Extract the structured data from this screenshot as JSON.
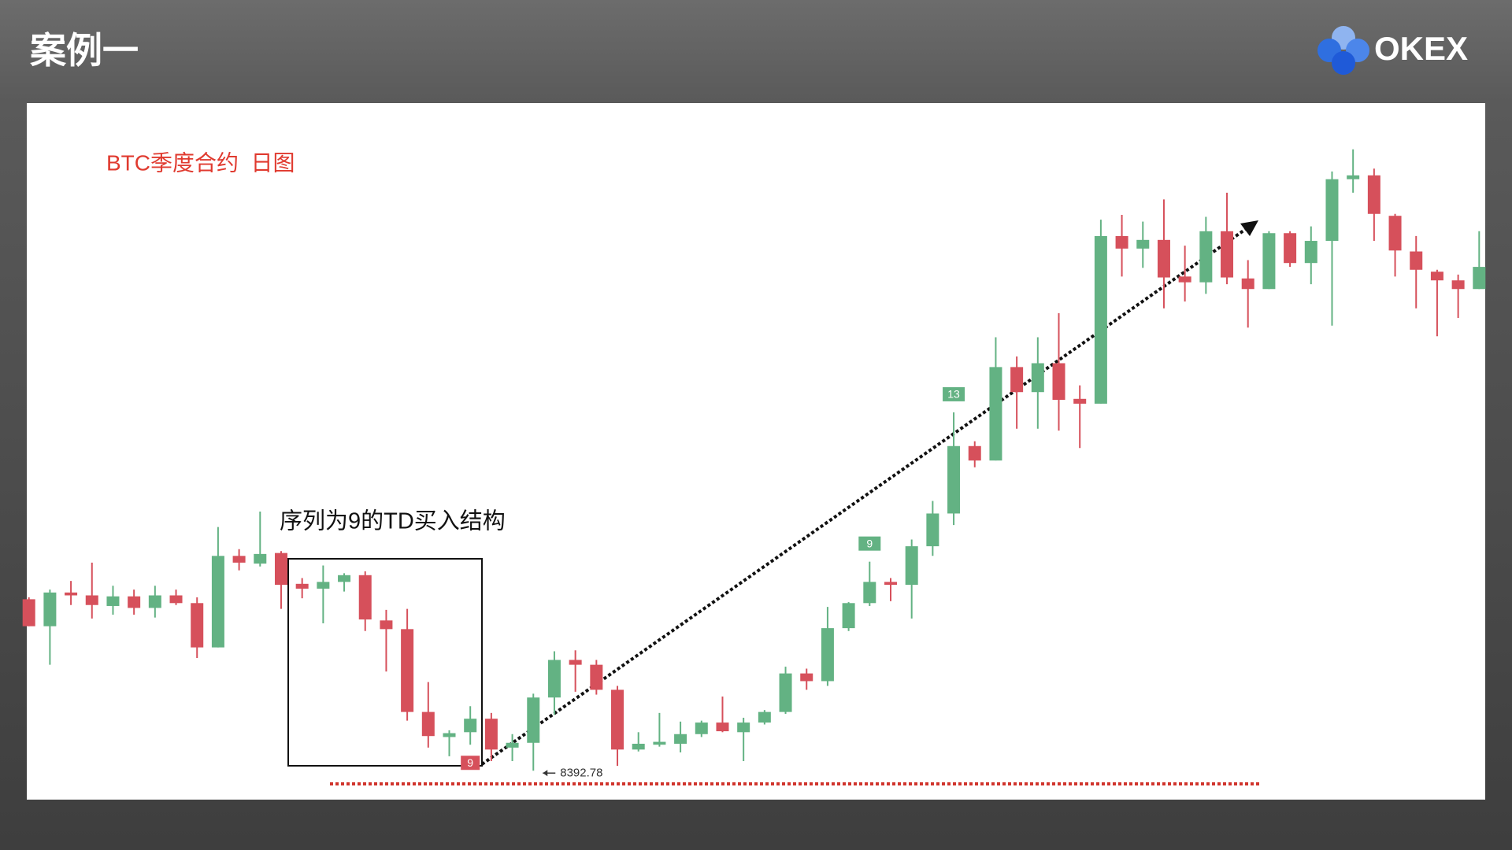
{
  "header": {
    "title": "案例一",
    "brand": "OKEX"
  },
  "chart_data": {
    "type": "candlestick",
    "title": "BTC季度合约  日图",
    "annotation": "序列为9的TD买入结构",
    "up_color": "#63b283",
    "down_color": "#d6505b",
    "ylim": [
      8093,
      15323
    ],
    "categories": [
      null,
      null,
      null,
      null,
      null,
      null,
      null,
      null,
      null,
      null,
      null,
      null,
      null,
      null,
      null,
      null,
      null,
      null,
      null,
      null,
      null,
      null,
      null,
      null,
      null,
      null,
      null,
      null,
      null,
      null,
      null,
      null,
      null,
      null,
      null,
      null,
      null,
      null,
      null,
      null,
      null,
      null,
      null,
      null,
      null,
      null,
      null,
      null,
      null,
      null,
      null,
      null,
      null,
      null,
      null,
      null,
      null,
      null,
      null,
      null,
      null,
      null,
      null,
      null,
      null,
      null,
      null,
      null,
      null,
      null
    ],
    "open": [
      10173,
      9893,
      10243,
      10213,
      10103,
      10203,
      10083,
      10213,
      10133,
      9673,
      10623,
      10543,
      10653,
      10333,
      10283,
      10353,
      10423,
      9953,
      9863,
      9003,
      8743,
      8793,
      8933,
      8633,
      8683,
      9153,
      9543,
      9493,
      9233,
      8613,
      8663,
      8673,
      8773,
      8893,
      8793,
      8893,
      9003,
      9403,
      9323,
      9873,
      10133,
      10353,
      10323,
      10723,
      11063,
      11763,
      11613,
      12583,
      12323,
      12623,
      12253,
      12203,
      13943,
      13813,
      13903,
      13523,
      13463,
      13993,
      13503,
      13393,
      13973,
      13663,
      13893,
      14533,
      14573,
      14153,
      13783,
      13573,
      13483,
      13393
    ],
    "high": [
      10193,
      10273,
      10363,
      10553,
      10313,
      10273,
      10313,
      10273,
      10193,
      10923,
      10693,
      11083,
      10673,
      10393,
      10523,
      10443,
      10463,
      10063,
      10073,
      9313,
      8813,
      9063,
      8993,
      8773,
      9193,
      9633,
      9643,
      9543,
      9273,
      8793,
      8993,
      8903,
      8913,
      9163,
      8943,
      9023,
      9473,
      9453,
      10093,
      10143,
      10563,
      10393,
      10793,
      11193,
      12113,
      11813,
      12893,
      12693,
      12893,
      13143,
      12393,
      14113,
      14163,
      14093,
      14323,
      13843,
      14143,
      14393,
      13693,
      13993,
      13993,
      14043,
      14613,
      14843,
      14643,
      14173,
      13943,
      13593,
      13543,
      13993
    ],
    "low": [
      9893,
      9493,
      10113,
      9973,
      10013,
      10013,
      9983,
      10113,
      9563,
      9673,
      10473,
      10513,
      10073,
      10183,
      9923,
      10253,
      9843,
      9423,
      8913,
      8633,
      8543,
      8663,
      8493,
      8493,
      8392.78,
      8973,
      9213,
      9183,
      8443,
      8593,
      8643,
      8583,
      8743,
      8793,
      8493,
      8873,
      8983,
      9233,
      9273,
      9843,
      10103,
      10153,
      9973,
      10623,
      10943,
      11543,
      11613,
      11943,
      11943,
      11923,
      11743,
      12203,
      13523,
      13613,
      13193,
      13263,
      13343,
      13443,
      12993,
      13393,
      13623,
      13443,
      13013,
      14393,
      13893,
      13523,
      13193,
      12903,
      13093,
      13393
    ],
    "close": [
      9893,
      10243,
      10213,
      10113,
      10203,
      10083,
      10213,
      10133,
      9673,
      10623,
      10553,
      10643,
      10323,
      10283,
      10353,
      10423,
      9963,
      9863,
      9003,
      8753,
      8783,
      8933,
      8613,
      8683,
      9153,
      9543,
      9493,
      9233,
      8613,
      8673,
      8693,
      8773,
      8893,
      8803,
      8893,
      9003,
      9403,
      9323,
      9873,
      10133,
      10353,
      10323,
      10723,
      11063,
      11763,
      11613,
      12583,
      12323,
      12623,
      12243,
      12203,
      13943,
      13813,
      13903,
      13513,
      13463,
      13993,
      13513,
      13393,
      13973,
      13663,
      13893,
      14533,
      14573,
      14173,
      13793,
      13593,
      13483,
      13393,
      13623
    ],
    "td_buy_color": "#d6505b",
    "td_sell_color": "#63b283",
    "td_buy": [
      null,
      null,
      null,
      null,
      null,
      null,
      null,
      null,
      null,
      null,
      null,
      null,
      null,
      null,
      null,
      null,
      null,
      null,
      null,
      null,
      null,
      9,
      null,
      null,
      null,
      null,
      null,
      null,
      null,
      null,
      null,
      null,
      null,
      null,
      null,
      null,
      null,
      null,
      null,
      null,
      null,
      null,
      null,
      null,
      null,
      null,
      null,
      null,
      null,
      null,
      null,
      null,
      null,
      null,
      null,
      null,
      null,
      null,
      null,
      null,
      null,
      null,
      null,
      null,
      null,
      null,
      null,
      null,
      null,
      null
    ],
    "td_sell": [
      null,
      null,
      null,
      null,
      null,
      null,
      null,
      null,
      null,
      null,
      null,
      null,
      null,
      null,
      null,
      null,
      null,
      null,
      null,
      null,
      null,
      null,
      null,
      null,
      null,
      null,
      null,
      null,
      null,
      null,
      null,
      null,
      null,
      null,
      null,
      null,
      null,
      null,
      null,
      null,
      9,
      null,
      null,
      null,
      13,
      null,
      null,
      null,
      null,
      null,
      null,
      null,
      null,
      null,
      null,
      null,
      null,
      null,
      null,
      null,
      null,
      null,
      null,
      null,
      null,
      null,
      null,
      null,
      null,
      null
    ]
  }
}
